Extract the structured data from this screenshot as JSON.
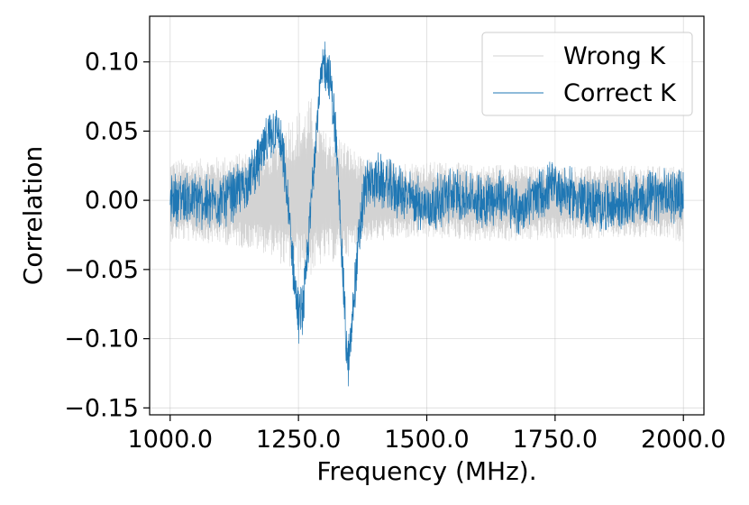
{
  "chart_data": {
    "type": "line",
    "title": "",
    "xlabel": "Frequency (MHz).",
    "ylabel": "Correlation",
    "xlim": [
      960,
      2040
    ],
    "ylim": [
      -0.155,
      0.133
    ],
    "x_ticks": [
      1000,
      1250,
      1500,
      1750,
      2000
    ],
    "x_tick_labels": [
      "1000.0",
      "1250.0",
      "1500.0",
      "1750.0",
      "2000.0"
    ],
    "y_ticks": [
      0.1,
      0.05,
      0.0,
      -0.05,
      -0.1,
      -0.15
    ],
    "y_tick_labels": [
      "0.10",
      "0.05",
      "0.00",
      "−0.05",
      "−0.10",
      "−0.15"
    ],
    "grid": true,
    "legend_position": "top-right",
    "series": [
      {
        "name": "Wrong K",
        "color": "#d3d3d3",
        "x": [
          1000,
          1050,
          1100,
          1150,
          1200,
          1225,
          1250,
          1275,
          1300,
          1325,
          1350,
          1375,
          1400,
          1450,
          1500,
          1550,
          1600,
          1650,
          1700,
          1750,
          1800,
          1850,
          1900,
          1950,
          2000
        ],
        "y_upper": [
          0.03,
          0.03,
          0.032,
          0.035,
          0.04,
          0.06,
          0.065,
          0.075,
          0.05,
          0.05,
          0.04,
          0.03,
          0.03,
          0.028,
          0.028,
          0.028,
          0.025,
          0.027,
          0.025,
          0.025,
          0.025,
          0.025,
          0.025,
          0.025,
          0.025
        ],
        "y_lower": [
          -0.03,
          -0.03,
          -0.032,
          -0.035,
          -0.04,
          -0.05,
          -0.05,
          -0.055,
          -0.045,
          -0.045,
          -0.04,
          -0.03,
          -0.03,
          -0.028,
          -0.028,
          -0.028,
          -0.03,
          -0.03,
          -0.03,
          -0.028,
          -0.028,
          -0.028,
          -0.028,
          -0.028,
          -0.03
        ]
      },
      {
        "name": "Correct K",
        "color": "#1f77b4",
        "x": [
          1000,
          1025,
          1050,
          1075,
          1100,
          1125,
          1150,
          1175,
          1200,
          1210,
          1220,
          1230,
          1240,
          1250,
          1260,
          1270,
          1280,
          1290,
          1300,
          1310,
          1320,
          1330,
          1340,
          1345,
          1350,
          1360,
          1370,
          1380,
          1400,
          1450,
          1500,
          1550,
          1600,
          1650,
          1680,
          1700,
          1750,
          1800,
          1850,
          1900,
          1950,
          2000
        ],
        "y": [
          0.0,
          0.002,
          0.0,
          -0.002,
          0.0,
          0.005,
          0.012,
          0.03,
          0.05,
          0.05,
          0.03,
          -0.005,
          -0.05,
          -0.085,
          -0.075,
          -0.03,
          0.03,
          0.075,
          0.1,
          0.09,
          0.06,
          0.0,
          -0.08,
          -0.12,
          -0.11,
          -0.06,
          -0.02,
          0.01,
          0.015,
          0.005,
          -0.005,
          0.005,
          0.0,
          0.002,
          -0.008,
          0.0,
          0.01,
          0.0,
          -0.005,
          0.0,
          0.002,
          0.005
        ]
      }
    ]
  }
}
